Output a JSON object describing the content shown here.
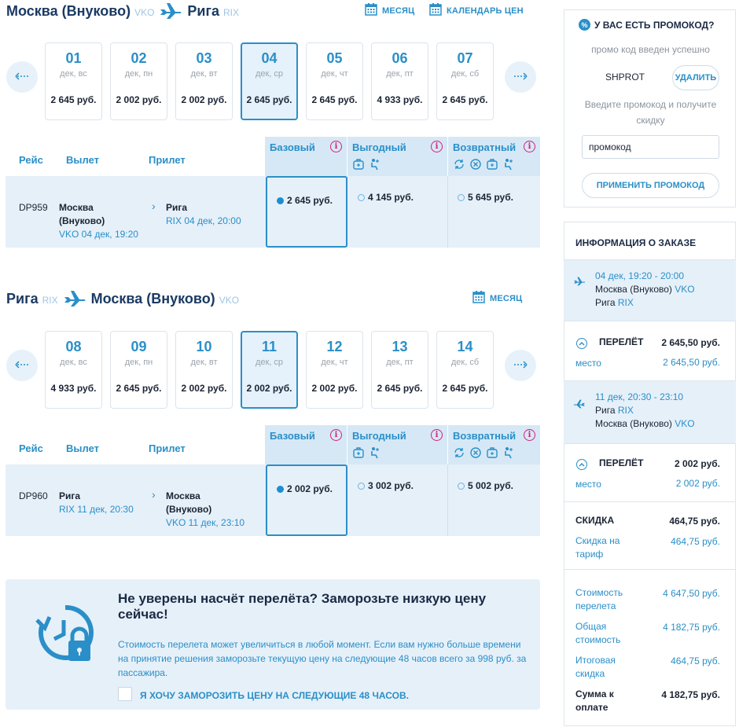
{
  "outbound": {
    "from_city": "Москва (Внуково)",
    "from_code": "VKO",
    "to_city": "Рига",
    "to_code": "RIX",
    "month_link": "МЕСЯЦ",
    "calendar_link": "КАЛЕНДАРЬ ЦЕН",
    "days": [
      {
        "num": "01",
        "wd": "дек, вс",
        "price": "2 645 руб."
      },
      {
        "num": "02",
        "wd": "дек, пн",
        "price": "2 002 руб."
      },
      {
        "num": "03",
        "wd": "дек, вт",
        "price": "2 002 руб."
      },
      {
        "num": "04",
        "wd": "дек, ср",
        "price": "2 645 руб.",
        "selected": true
      },
      {
        "num": "05",
        "wd": "дек, чт",
        "price": "2 645 руб."
      },
      {
        "num": "06",
        "wd": "дек, пт",
        "price": "4 933 руб."
      },
      {
        "num": "07",
        "wd": "дек, сб",
        "price": "2 645 руб."
      }
    ],
    "flight": {
      "number": "DP959",
      "dep_city": "Москва (Внуково)",
      "dep_info": "VKO 04 дек, 19:20",
      "arr_city": "Рига",
      "arr_info": "RIX 04 дек, 20:00",
      "fare_basic": "2 645 руб.",
      "fare_value": "4 145 руб.",
      "fare_return": "5 645 руб."
    }
  },
  "inbound": {
    "from_city": "Рига",
    "from_code": "RIX",
    "to_city": "Москва (Внуково)",
    "to_code": "VKO",
    "month_link": "МЕСЯЦ",
    "days": [
      {
        "num": "08",
        "wd": "дек, вс",
        "price": "4 933 руб."
      },
      {
        "num": "09",
        "wd": "дек, пн",
        "price": "2 645 руб."
      },
      {
        "num": "10",
        "wd": "дек, вт",
        "price": "2 002 руб."
      },
      {
        "num": "11",
        "wd": "дек, ср",
        "price": "2 002 руб.",
        "selected": true
      },
      {
        "num": "12",
        "wd": "дек, чт",
        "price": "2 002 руб."
      },
      {
        "num": "13",
        "wd": "дек, пт",
        "price": "2 645 руб."
      },
      {
        "num": "14",
        "wd": "дек, сб",
        "price": "2 645 руб."
      }
    ],
    "flight": {
      "number": "DP960",
      "dep_city": "Рига",
      "dep_info": "RIX 11 дек, 20:30",
      "arr_city": "Москва (Внуково)",
      "arr_info": "VKO 11 дек, 23:10",
      "fare_basic": "2 002 руб.",
      "fare_value": "3 002 руб.",
      "fare_return": "5 002 руб."
    }
  },
  "table_headers": {
    "flight": "Рейс",
    "departure": "Вылет",
    "arrival": "Прилет",
    "basic": "Базовый",
    "value": "Выгодный",
    "return": "Возвратный"
  },
  "freeze": {
    "title": "Не уверены насчёт перелёта? Заморозьте низкую цену сейчас!",
    "text": "Стоимость перелета может увеличиться в любой момент. Если вам нужно больше времени на принятие решения заморозьте текущую цену на следующие 48 часов всего за 998 руб. за пассажира.",
    "checkbox_label": "Я ХОЧУ ЗАМОРОЗИТЬ ЦЕНУ НА СЛЕДУЮЩИЕ 48 ЧАСОВ."
  },
  "promo": {
    "title": "У ВАС ЕСТЬ ПРОМОКОД?",
    "badge": "%",
    "success": "промо код введен успешно",
    "code": "SHPROT",
    "delete_label": "УДАЛИТЬ",
    "hint": "Введите промокод и получите скидку",
    "input_value": "промокод",
    "apply_label": "ПРИМЕНИТЬ ПРОМОКОД"
  },
  "order": {
    "title": "ИНФОРМАЦИЯ О ЗАКАЗЕ",
    "out_time": "04 дек, 19:20 - 20:00",
    "out_from": "Москва (Внуково)",
    "out_from_code": "VKO",
    "out_to": "Рига",
    "out_to_code": "RIX",
    "out_flight_label": "ПЕРЕЛЁТ",
    "out_flight_price": "2 645,50 руб.",
    "out_seat_label": "место",
    "out_seat_price": "2 645,50 руб.",
    "in_time": "11 дек, 20:30 - 23:10",
    "in_from": "Рига",
    "in_from_code": "RIX",
    "in_to": "Москва (Внуково)",
    "in_to_code": "VKO",
    "in_flight_label": "ПЕРЕЛЁТ",
    "in_flight_price": "2 002 руб.",
    "in_seat_label": "место",
    "in_seat_price": "2 002 руб.",
    "discount_label": "СКИДКА",
    "discount_value": "464,75 руб.",
    "tariff_discount_label": "Скидка на тариф",
    "tariff_discount_value": "464,75 руб.",
    "flight_cost_label": "Стоимость перелета",
    "flight_cost_value": "4 647,50 руб.",
    "total_cost_label": "Общая стоимость",
    "total_cost_value": "4 182,75 руб.",
    "final_discount_label": "Итоговая скидка",
    "final_discount_value": "464,75 руб.",
    "pay_label": "Сумма к оплате",
    "pay_value": "4 182,75 руб."
  }
}
